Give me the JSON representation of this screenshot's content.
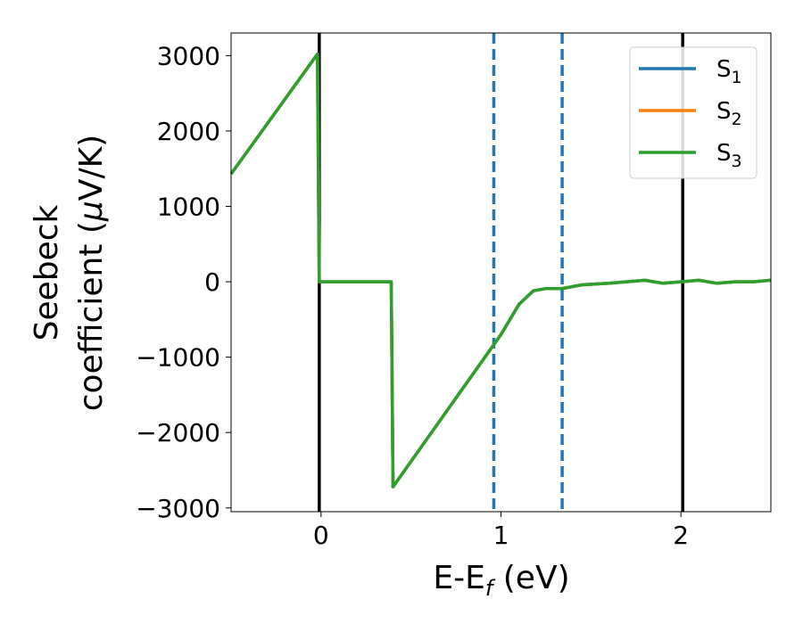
{
  "chart_data": {
    "type": "line",
    "xlabel": "E-E",
    "xlabel_sub": "f",
    "xlabel_unit": " (eV)",
    "ylabel_line1": "Seebeck",
    "ylabel_line2": "coefficient  (",
    "ylabel_mu": "μ",
    "ylabel_unit": "V/K)",
    "xlim": [
      -0.5,
      2.5
    ],
    "ylim": [
      -3050,
      3300
    ],
    "x_ticks": [
      0,
      1,
      2
    ],
    "x_tick_labels": [
      "0",
      "1",
      "2"
    ],
    "y_ticks": [
      3000,
      2000,
      1000,
      0,
      -1000,
      -2000,
      -3000
    ],
    "y_tick_labels": [
      "3000",
      "2000",
      "1000",
      "0",
      "−1000",
      "−2000",
      "−3000"
    ],
    "grid": false,
    "legend_position": "top-right",
    "vertical_lines": [
      {
        "x": -0.01,
        "style": "solid",
        "color": "#000000"
      },
      {
        "x": 2.01,
        "style": "solid",
        "color": "#000000"
      },
      {
        "x": 0.96,
        "style": "dashed",
        "color": "#1f77b4"
      },
      {
        "x": 1.34,
        "style": "dashed",
        "color": "#1f77b4"
      }
    ],
    "series": [
      {
        "name": "S",
        "sub": "1",
        "color": "#1f77b4",
        "x": [
          -0.5,
          -0.02,
          -0.01,
          0.39,
          0.4,
          1.0,
          1.1,
          1.18,
          1.25,
          1.34,
          1.45,
          1.6,
          1.8,
          1.9,
          2.0,
          2.1,
          2.2,
          2.3,
          2.4,
          2.5
        ],
        "y": [
          1430,
          3020,
          0,
          0,
          -2720,
          -700,
          -300,
          -120,
          -90,
          -90,
          -40,
          -20,
          20,
          -20,
          0,
          20,
          -20,
          0,
          0,
          20
        ]
      },
      {
        "name": "S",
        "sub": "2",
        "color": "#ff7f0e",
        "x": [
          -0.5,
          -0.02,
          -0.01,
          0.39,
          0.4,
          1.0,
          1.1,
          1.18,
          1.25,
          1.34,
          1.45,
          1.6,
          1.8,
          1.9,
          2.0,
          2.1,
          2.2,
          2.3,
          2.4,
          2.5
        ],
        "y": [
          1430,
          3020,
          0,
          0,
          -2720,
          -700,
          -300,
          -120,
          -90,
          -90,
          -40,
          -20,
          20,
          -20,
          0,
          20,
          -20,
          0,
          0,
          20
        ]
      },
      {
        "name": "S",
        "sub": "3",
        "color": "#2ca02c",
        "x": [
          -0.5,
          -0.02,
          -0.01,
          0.39,
          0.4,
          1.0,
          1.1,
          1.18,
          1.25,
          1.34,
          1.45,
          1.6,
          1.8,
          1.9,
          2.0,
          2.1,
          2.2,
          2.3,
          2.4,
          2.5
        ],
        "y": [
          1430,
          3020,
          0,
          0,
          -2720,
          -700,
          -300,
          -120,
          -90,
          -90,
          -40,
          -20,
          20,
          -20,
          0,
          20,
          -20,
          0,
          0,
          20
        ]
      }
    ]
  }
}
